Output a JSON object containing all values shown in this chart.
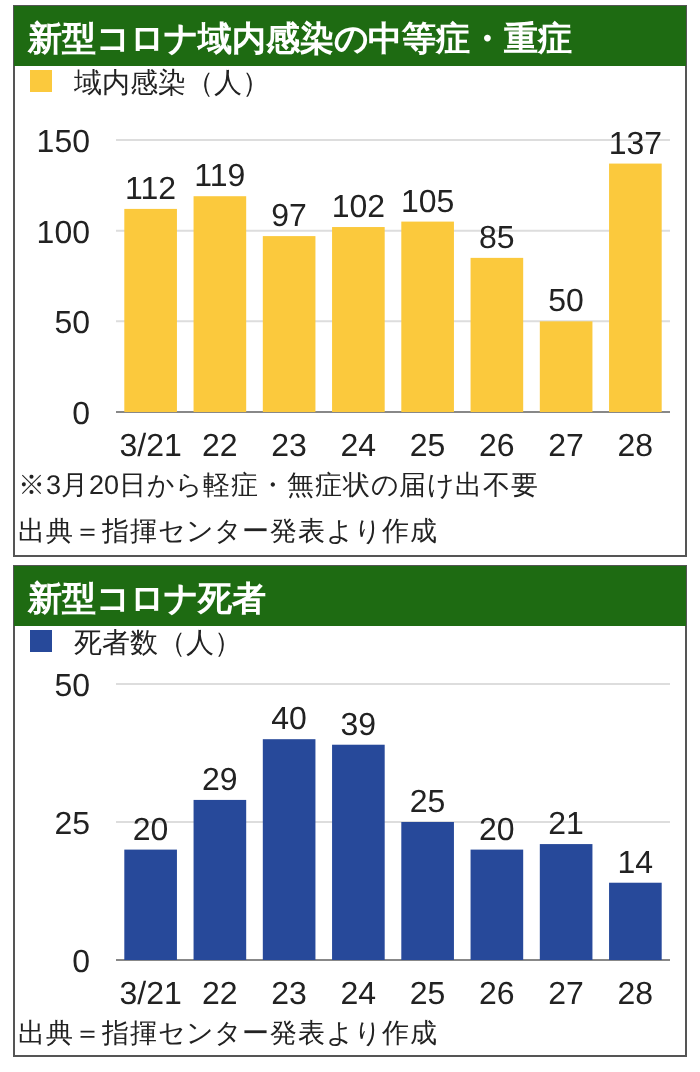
{
  "chart_data": [
    {
      "type": "bar",
      "title": "新型コロナ域内感染の中等症・重症",
      "categories": [
        "3/21",
        "22",
        "23",
        "24",
        "25",
        "26",
        "27",
        "28"
      ],
      "series": [
        {
          "name": "域内感染（人）",
          "color": "#fbc93d",
          "values": [
            112,
            119,
            97,
            102,
            105,
            85,
            50,
            137
          ]
        }
      ],
      "ylim": [
        0,
        150
      ],
      "yticks": [
        0,
        50,
        100,
        150
      ],
      "grid": "y",
      "legend": "top left",
      "data_labels": true,
      "annotations": [
        "※3月20日から軽症・無症状の届け出不要",
        "出典＝指揮センター発表より作成"
      ]
    },
    {
      "type": "bar",
      "title": "新型コロナ死者",
      "categories": [
        "3/21",
        "22",
        "23",
        "24",
        "25",
        "26",
        "27",
        "28"
      ],
      "series": [
        {
          "name": "死者数（人）",
          "color": "#27499a",
          "values": [
            20,
            29,
            40,
            39,
            25,
            20,
            21,
            14
          ]
        }
      ],
      "ylim": [
        0,
        50
      ],
      "yticks": [
        0,
        25,
        50
      ],
      "grid": "y",
      "legend": "top left",
      "data_labels": true,
      "annotations": [
        "出典＝指揮センター発表より作成"
      ]
    }
  ]
}
